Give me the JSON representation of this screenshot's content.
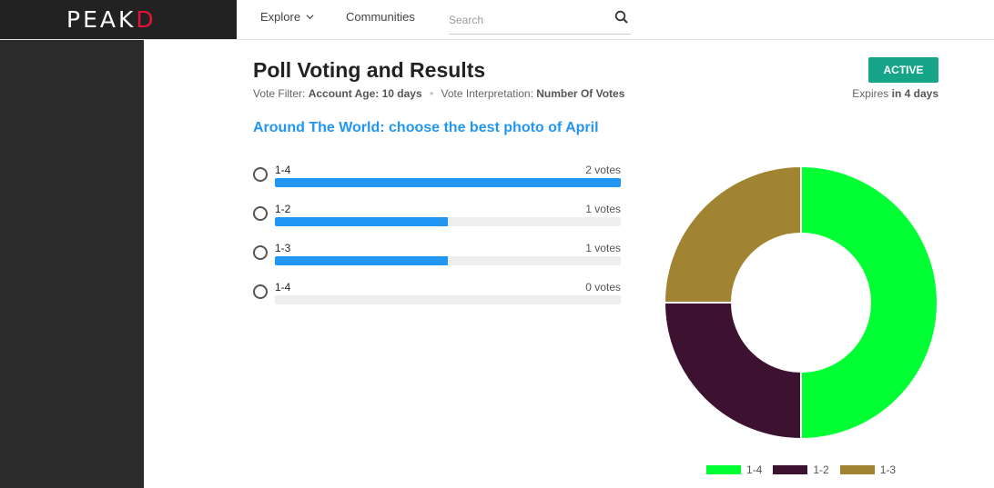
{
  "header": {
    "logo_left": "PEAK",
    "logo_right": "D",
    "nav": {
      "explore": "Explore",
      "communities": "Communities"
    },
    "search": {
      "placeholder": "Search"
    }
  },
  "poll": {
    "title": "Poll Voting and Results",
    "filter_label": "Vote Filter:",
    "filter_value": "Account Age: 10 days",
    "interp_label": "Vote Interpretation:",
    "interp_value": "Number Of Votes",
    "status": "ACTIVE",
    "expires_prefix": "Expires",
    "expires_value": "in 4 days",
    "question": "Around The World: choose the best photo of April",
    "options": [
      {
        "label": "1-4",
        "votes_text": "2 votes",
        "fraction": 1.0
      },
      {
        "label": "1-2",
        "votes_text": "1 votes",
        "fraction": 0.5
      },
      {
        "label": "1-3",
        "votes_text": "1 votes",
        "fraction": 0.5
      },
      {
        "label": "1-4",
        "votes_text": "0 votes",
        "fraction": 0.0
      }
    ]
  },
  "chart_data": {
    "type": "pie",
    "style": "donut",
    "categories": [
      "1-4",
      "1-2",
      "1-3"
    ],
    "values": [
      2,
      1,
      1
    ],
    "colors": [
      "#00ff33",
      "#3d1230",
      "#a08432"
    ],
    "legend": [
      "1-4",
      "1-2",
      "1-3"
    ],
    "legend_position": "bottom"
  },
  "colors": {
    "accent": "#2196f3",
    "badge": "#17a589",
    "brand_red": "#e31337"
  }
}
